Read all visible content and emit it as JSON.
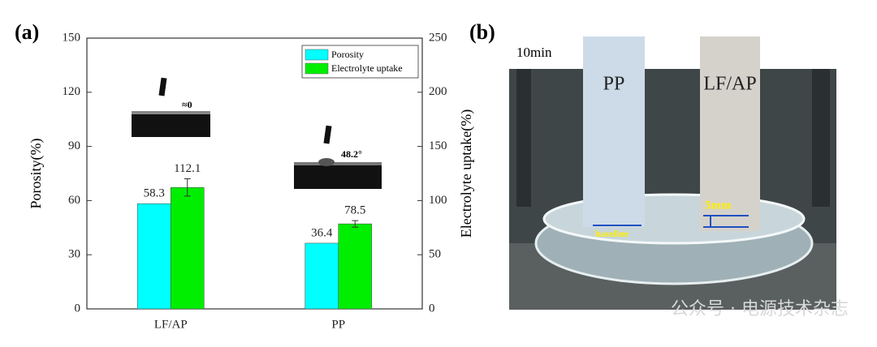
{
  "panel_labels": [
    "(a)",
    "(b)"
  ],
  "chart_data": {
    "type": "bar",
    "ylabel": "Porosity(%)",
    "y2label": "Electrolyte uptake(%)",
    "categories": [
      "LF/AP",
      "PP"
    ],
    "series": [
      {
        "name": "Porosity",
        "color": "#00ffff",
        "values": [
          58.3,
          36.4
        ]
      },
      {
        "name": "Electrolyte uptake",
        "color": "#00ee00",
        "values": [
          112.1,
          78.5
        ],
        "errors": [
          8,
          3
        ],
        "axis": "y2"
      }
    ],
    "ylim": [
      0,
      150
    ],
    "yticks": [
      0,
      30,
      60,
      90,
      120,
      150
    ],
    "y2lim": [
      0,
      250
    ],
    "y2ticks": [
      0,
      50,
      100,
      150,
      200,
      250
    ],
    "legend": "upper right",
    "annotations": [
      "≈0",
      "48.2°"
    ]
  },
  "photo": {
    "time": "10min",
    "strips": [
      "PP",
      "LF/AP"
    ],
    "baseline": "baseline",
    "height": "5mm"
  },
  "watermark": "公众号 · 电源技术杂志"
}
